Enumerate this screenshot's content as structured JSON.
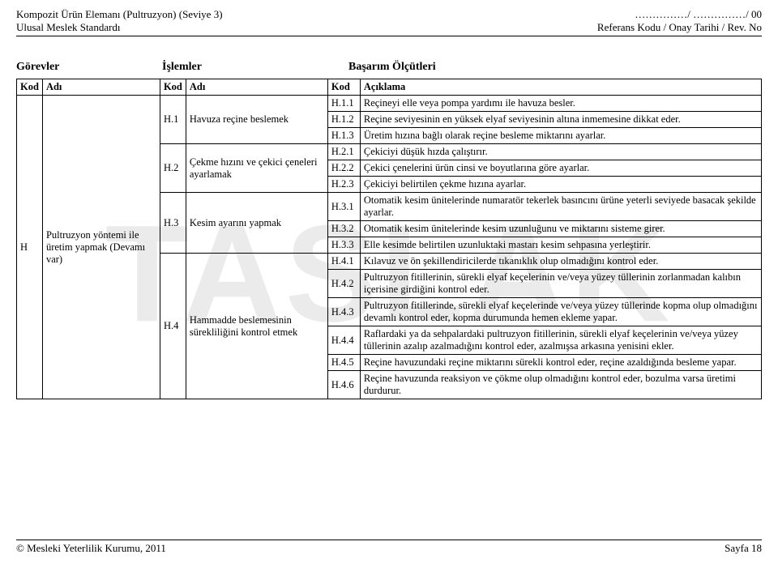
{
  "header": {
    "left_line1": "Kompozit Ürün Elemanı (Pultruzyon) (Seviye 3)",
    "left_line2": "Ulusal Meslek Standardı",
    "right_line1": "……………/ ……………/ 00",
    "right_line2": "Referans Kodu / Onay Tarihi / Rev. No"
  },
  "section_headers": {
    "gorevler": "Görevler",
    "islemler": "İşlemler",
    "basarim": "Başarım Ölçütleri"
  },
  "table": {
    "head": {
      "kod": "Kod",
      "adi": "Adı",
      "aciklama": "Açıklama"
    },
    "gorev": {
      "kod": "H",
      "adi": "Pultruzyon yöntemi ile üretim yapmak (Devamı var)"
    },
    "islemler": [
      {
        "kod": "H.1",
        "adi": "Havuza reçine beslemek",
        "span": 3
      },
      {
        "kod": "H.2",
        "adi": "Çekme hızını ve çekici çeneleri ayarlamak",
        "span": 3
      },
      {
        "kod": "H.3",
        "adi": "Kesim ayarını yapmak",
        "span": 3
      },
      {
        "kod": "H.4",
        "adi": "Hammadde beslemesinin sürekliliğini kontrol etmek",
        "span": 6
      }
    ],
    "rows": [
      {
        "kod": "H.1.1",
        "acik": "Reçineyi elle veya pompa yardımı ile havuza besler."
      },
      {
        "kod": "H.1.2",
        "acik": "Reçine seviyesinin en yüksek elyaf seviyesinin altına inmemesine dikkat eder."
      },
      {
        "kod": "H.1.3",
        "acik": "Üretim hızına bağlı olarak reçine besleme miktarını ayarlar."
      },
      {
        "kod": "H.2.1",
        "acik": "Çekiciyi düşük hızda çalıştırır."
      },
      {
        "kod": "H.2.2",
        "acik": "Çekici çenelerini ürün cinsi ve boyutlarına göre ayarlar."
      },
      {
        "kod": "H.2.3",
        "acik": "Çekiciyi belirtilen çekme hızına ayarlar."
      },
      {
        "kod": "H.3.1",
        "acik": "Otomatik kesim ünitelerinde numaratör tekerlek basıncını ürüne yeterli seviyede basacak şekilde ayarlar."
      },
      {
        "kod": "H.3.2",
        "acik": "Otomatik kesim ünitelerinde kesim uzunluğunu ve miktarını sisteme girer."
      },
      {
        "kod": "H.3.3",
        "acik": "Elle kesimde belirtilen uzunluktaki mastarı kesim sehpasına yerleştirir."
      },
      {
        "kod": "H.4.1",
        "acik": "Kılavuz ve ön şekillendiricilerde tıkanıklık olup olmadığını kontrol eder."
      },
      {
        "kod": "H.4.2",
        "acik": "Pultruzyon fitillerinin, sürekli elyaf keçelerinin ve/veya yüzey tüllerinin zorlanmadan kalıbın içerisine girdiğini kontrol eder."
      },
      {
        "kod": "H.4.3",
        "acik": "Pultruzyon fitillerinde, sürekli elyaf keçelerinde ve/veya yüzey tüllerinde kopma olup olmadığını devamlı kontrol eder, kopma durumunda hemen ekleme yapar."
      },
      {
        "kod": "H.4.4",
        "acik": "Raflardaki ya da sehpalardaki pultruzyon fitillerinin, sürekli elyaf keçelerinin ve/veya yüzey tüllerinin azalıp azalmadığını kontrol eder, azalmışsa arkasına yenisini ekler."
      },
      {
        "kod": "H.4.5",
        "acik": "Reçine havuzundaki reçine miktarını sürekli kontrol eder, reçine azaldığında besleme yapar."
      },
      {
        "kod": "H.4.6",
        "acik": "Reçine havuzunda reaksiyon ve çökme olup olmadığını kontrol eder, bozulma varsa üretimi durdurur."
      }
    ]
  },
  "footer": {
    "left": "© Mesleki Yeterlilik Kurumu, 2011",
    "right": "Sayfa 18"
  },
  "watermark": "TASLAK"
}
